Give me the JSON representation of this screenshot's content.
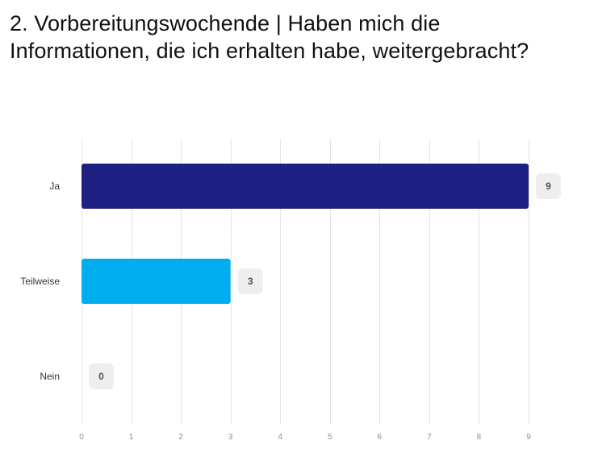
{
  "chart_data": {
    "type": "bar",
    "orientation": "horizontal",
    "title": "2. Vorbereitungswochende | Haben mich die Informationen, die ich erhalten habe, weitergebracht?",
    "categories": [
      "Ja",
      "Teilweise",
      "Nein"
    ],
    "values": [
      9,
      3,
      0
    ],
    "colors": [
      "#1e2183",
      "#00aeef",
      "#1e2183"
    ],
    "xlim": [
      0,
      9
    ],
    "xticks": [
      0,
      1,
      2,
      3,
      4,
      5,
      6,
      7,
      8,
      9
    ],
    "grid": true,
    "data_label_bg": "#eeeeee"
  }
}
